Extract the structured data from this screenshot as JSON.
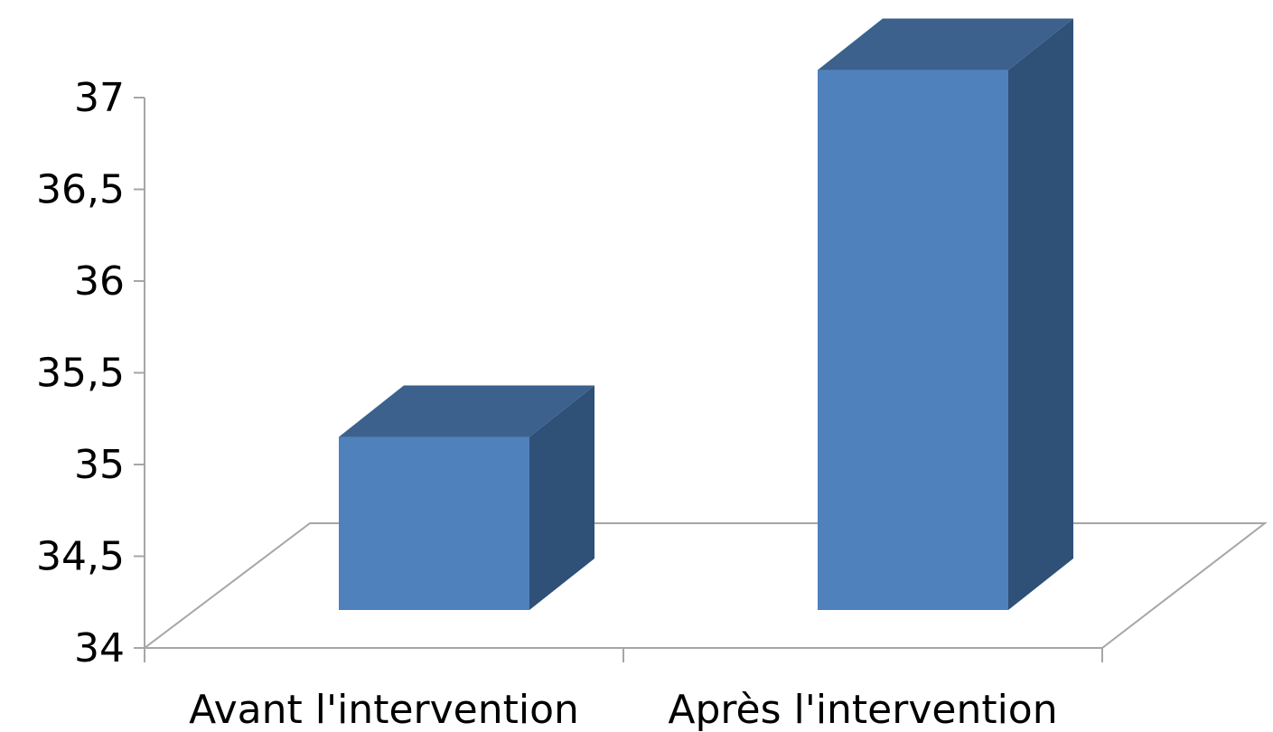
{
  "chart_data": {
    "type": "bar",
    "categories": [
      "Avant l'intervention",
      "Après l'intervention"
    ],
    "values": [
      35.15,
      37.15
    ],
    "ylim": [
      34,
      37
    ],
    "yticks": [
      "34",
      "34,5",
      "35",
      "35,5",
      "36",
      "36,5",
      "37"
    ],
    "grid": false,
    "three_d": true,
    "colors": {
      "front": "#4f81bd",
      "top": "#3c618d",
      "side": "#2f5077",
      "axis": "#a6a6a6"
    }
  }
}
